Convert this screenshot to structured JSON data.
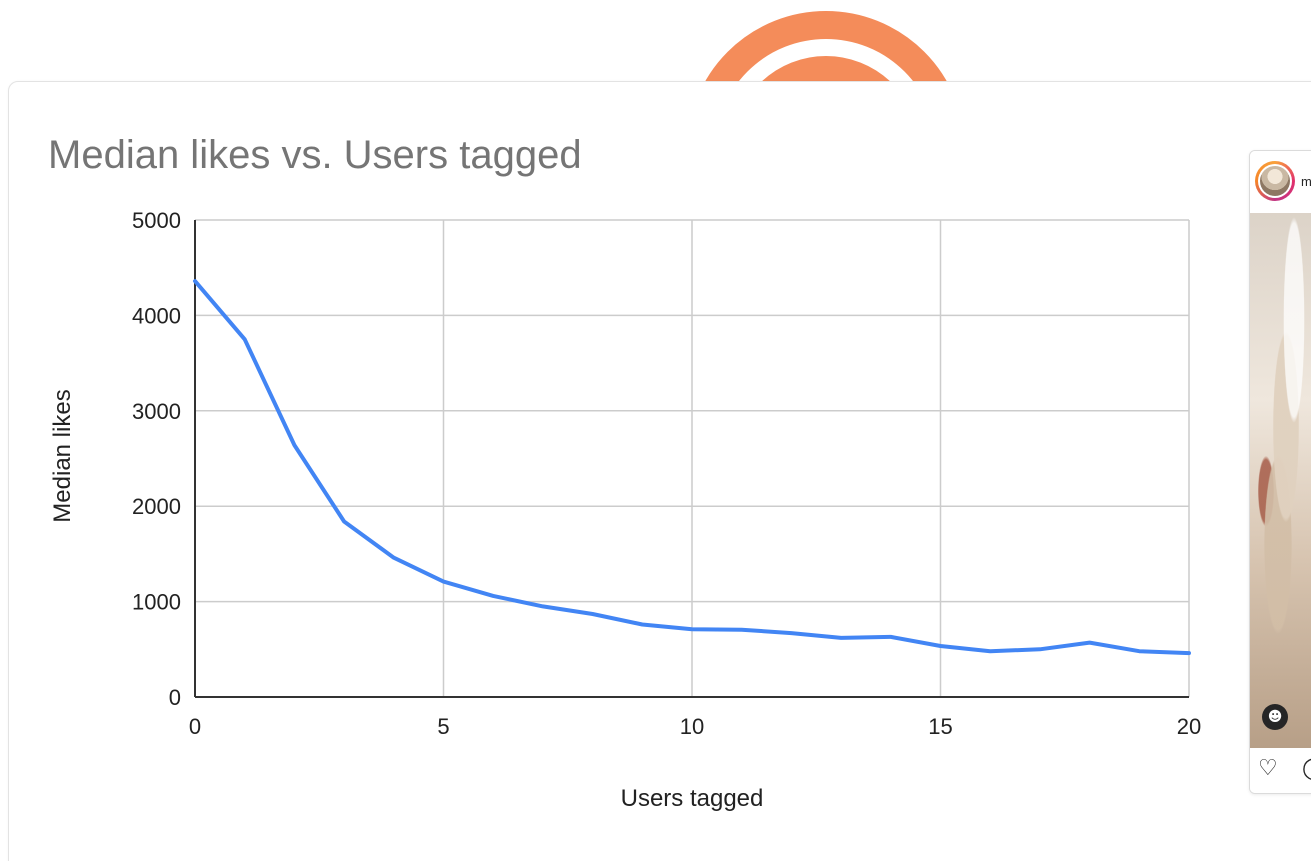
{
  "chart_data": {
    "type": "line",
    "title": "Median likes vs. Users tagged",
    "xlabel": "Users tagged",
    "ylabel": "Median likes",
    "xlim": [
      0,
      20
    ],
    "ylim": [
      0,
      5000
    ],
    "xticks": [
      "0",
      "5",
      "10",
      "15",
      "20"
    ],
    "yticks": [
      "0",
      "1000",
      "2000",
      "3000",
      "4000",
      "5000"
    ],
    "grid": true,
    "legend": "none",
    "series": [
      {
        "color": "#4285f4",
        "x": [
          0,
          1,
          2,
          3,
          4,
          5,
          6,
          7,
          8,
          9,
          10,
          11,
          12,
          13,
          14,
          15,
          16,
          17,
          18,
          19,
          20
        ],
        "y": [
          4360,
          3750,
          2640,
          1840,
          1460,
          1210,
          1060,
          950,
          870,
          760,
          710,
          705,
          670,
          620,
          630,
          535,
          480,
          500,
          570,
          480,
          460
        ]
      }
    ]
  },
  "post": {
    "username": "m",
    "user_tag_icon": "person-icon",
    "like_icon": "heart-icon",
    "comment_icon": "comment-icon",
    "like_glyph": "♡",
    "comment_glyph": "◯",
    "user_tag_glyph": "☻"
  },
  "colors": {
    "line": "#4285f4",
    "grid": "#cccccc",
    "title": "#757575",
    "decor_ring": "#f48c5a"
  }
}
